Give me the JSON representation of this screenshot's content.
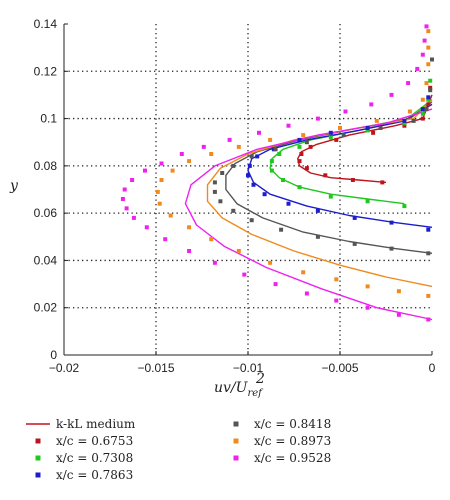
{
  "chart_data": {
    "type": "line",
    "xlabel": "uv/U",
    "xlabel_superscript": "2",
    "xlabel_subscript": "ref",
    "ylabel": "y",
    "xlim": [
      -0.02,
      0
    ],
    "ylim": [
      0,
      0.14
    ],
    "xticks": [
      -0.02,
      -0.015,
      -0.01,
      -0.005,
      0
    ],
    "xtick_labels": [
      "−0.02",
      "−0.015",
      "−0.01",
      "−0.005",
      "0"
    ],
    "yticks": [
      0,
      0.02,
      0.04,
      0.06,
      0.08,
      0.1,
      0.12,
      0.14
    ],
    "ytick_labels": [
      "0",
      "0.02",
      "0.04",
      "0.06",
      "0.08",
      "0.1",
      "0.12",
      "0.14"
    ],
    "grid": "dotted",
    "legend_position": "below",
    "line_legend": "k-kL medium",
    "series": [
      {
        "name": "x/c = 0.6753",
        "color": "#c0141c",
        "line": [
          [
            -0.0025,
            0.073
          ],
          [
            -0.004,
            0.074
          ],
          [
            -0.0055,
            0.075
          ],
          [
            -0.0066,
            0.077
          ],
          [
            -0.0072,
            0.08
          ],
          [
            -0.0073,
            0.083
          ],
          [
            -0.0071,
            0.086
          ],
          [
            -0.0063,
            0.089
          ],
          [
            -0.0045,
            0.093
          ],
          [
            -0.002,
            0.097
          ],
          [
            -0.0005,
            0.1
          ],
          [
            0,
            0.11
          ]
        ],
        "points": [
          [
            -0.0027,
            0.073
          ],
          [
            -0.0043,
            0.074
          ],
          [
            -0.0058,
            0.076
          ],
          [
            -0.0068,
            0.079
          ],
          [
            -0.0072,
            0.082
          ],
          [
            -0.0071,
            0.085
          ],
          [
            -0.0066,
            0.088
          ],
          [
            -0.0052,
            0.091
          ],
          [
            -0.0032,
            0.094
          ],
          [
            -0.0015,
            0.097
          ],
          [
            -0.0005,
            0.1
          ],
          [
            -0.0002,
            0.106
          ],
          [
            -0.0001,
            0.113
          ]
        ]
      },
      {
        "name": "x/c = 0.7308",
        "color": "#1ec81e",
        "line": [
          [
            -0.0015,
            0.064
          ],
          [
            -0.0035,
            0.066
          ],
          [
            -0.0055,
            0.068
          ],
          [
            -0.0072,
            0.071
          ],
          [
            -0.0083,
            0.075
          ],
          [
            -0.0088,
            0.079
          ],
          [
            -0.0087,
            0.083
          ],
          [
            -0.0081,
            0.087
          ],
          [
            -0.0066,
            0.091
          ],
          [
            -0.004,
            0.095
          ],
          [
            -0.0015,
            0.099
          ],
          [
            0,
            0.108
          ]
        ],
        "points": [
          [
            -0.0015,
            0.063
          ],
          [
            -0.0035,
            0.065
          ],
          [
            -0.0055,
            0.067
          ],
          [
            -0.0072,
            0.071
          ],
          [
            -0.0081,
            0.074
          ],
          [
            -0.0087,
            0.078
          ],
          [
            -0.0087,
            0.082
          ],
          [
            -0.0083,
            0.085
          ],
          [
            -0.0072,
            0.088
          ],
          [
            -0.0055,
            0.092
          ],
          [
            -0.0035,
            0.095
          ],
          [
            -0.0015,
            0.098
          ],
          [
            -0.0005,
            0.102
          ],
          [
            -0.0002,
            0.108
          ],
          [
            -0.0001,
            0.116
          ]
        ]
      },
      {
        "name": "x/c = 0.7863",
        "color": "#1d1dcc",
        "line": [
          [
            0,
            0.054
          ],
          [
            -0.002,
            0.056
          ],
          [
            -0.0045,
            0.059
          ],
          [
            -0.0068,
            0.063
          ],
          [
            -0.0088,
            0.068
          ],
          [
            -0.0097,
            0.073
          ],
          [
            -0.01,
            0.078
          ],
          [
            -0.0098,
            0.083
          ],
          [
            -0.0088,
            0.087
          ],
          [
            -0.0068,
            0.091
          ],
          [
            -0.004,
            0.095
          ],
          [
            -0.0015,
            0.099
          ],
          [
            0,
            0.106
          ]
        ],
        "points": [
          [
            -0.0002,
            0.053
          ],
          [
            -0.0022,
            0.056
          ],
          [
            -0.0042,
            0.058
          ],
          [
            -0.0062,
            0.061
          ],
          [
            -0.0078,
            0.064
          ],
          [
            -0.0091,
            0.068
          ],
          [
            -0.0097,
            0.072
          ],
          [
            -0.01,
            0.076
          ],
          [
            -0.0099,
            0.08
          ],
          [
            -0.0095,
            0.084
          ],
          [
            -0.0086,
            0.087
          ],
          [
            -0.0072,
            0.091
          ],
          [
            -0.0055,
            0.094
          ],
          [
            -0.0035,
            0.096
          ],
          [
            -0.0015,
            0.099
          ],
          [
            -0.0005,
            0.104
          ],
          [
            -0.0002,
            0.109
          ]
        ]
      },
      {
        "name": "x/c = 0.8418",
        "color": "#555555",
        "line": [
          [
            0,
            0.043
          ],
          [
            -0.002,
            0.045
          ],
          [
            -0.0045,
            0.048
          ],
          [
            -0.007,
            0.052
          ],
          [
            -0.0092,
            0.058
          ],
          [
            -0.0106,
            0.064
          ],
          [
            -0.0112,
            0.07
          ],
          [
            -0.0112,
            0.076
          ],
          [
            -0.0107,
            0.081
          ],
          [
            -0.0095,
            0.086
          ],
          [
            -0.0072,
            0.091
          ],
          [
            -0.004,
            0.096
          ],
          [
            -0.0012,
            0.1
          ],
          [
            0,
            0.107
          ]
        ],
        "points": [
          [
            -0.0002,
            0.043
          ],
          [
            -0.0022,
            0.045
          ],
          [
            -0.0042,
            0.047
          ],
          [
            -0.0062,
            0.05
          ],
          [
            -0.0082,
            0.053
          ],
          [
            -0.0098,
            0.057
          ],
          [
            -0.0108,
            0.061
          ],
          [
            -0.0115,
            0.065
          ],
          [
            -0.0118,
            0.069
          ],
          [
            -0.0118,
            0.073
          ],
          [
            -0.0114,
            0.077
          ],
          [
            -0.0108,
            0.08
          ],
          [
            -0.0098,
            0.084
          ],
          [
            -0.0085,
            0.087
          ],
          [
            -0.0068,
            0.09
          ],
          [
            -0.0048,
            0.093
          ],
          [
            -0.0028,
            0.096
          ],
          [
            -0.001,
            0.099
          ],
          [
            -0.0003,
            0.104
          ],
          [
            -0.0001,
            0.112
          ],
          [
            0,
            0.125
          ]
        ]
      },
      {
        "name": "x/c = 0.8973",
        "color": "#f08a1e",
        "line": [
          [
            0,
            0.029
          ],
          [
            -0.0025,
            0.033
          ],
          [
            -0.005,
            0.038
          ],
          [
            -0.0075,
            0.044
          ],
          [
            -0.0098,
            0.051
          ],
          [
            -0.0114,
            0.058
          ],
          [
            -0.0122,
            0.065
          ],
          [
            -0.0122,
            0.072
          ],
          [
            -0.0115,
            0.079
          ],
          [
            -0.01,
            0.085
          ],
          [
            -0.0075,
            0.091
          ],
          [
            -0.004,
            0.096
          ],
          [
            -0.001,
            0.1
          ],
          [
            0,
            0.108
          ]
        ],
        "points": [
          [
            -0.0002,
            0.025
          ],
          [
            -0.0018,
            0.027
          ],
          [
            -0.0035,
            0.029
          ],
          [
            -0.0052,
            0.032
          ],
          [
            -0.007,
            0.035
          ],
          [
            -0.0088,
            0.039
          ],
          [
            -0.0105,
            0.044
          ],
          [
            -0.012,
            0.049
          ],
          [
            -0.0132,
            0.054
          ],
          [
            -0.0142,
            0.059
          ],
          [
            -0.0148,
            0.064
          ],
          [
            -0.0149,
            0.069
          ],
          [
            -0.0147,
            0.074
          ],
          [
            -0.0141,
            0.078
          ],
          [
            -0.0132,
            0.082
          ],
          [
            -0.012,
            0.085
          ],
          [
            -0.0105,
            0.088
          ],
          [
            -0.0088,
            0.091
          ],
          [
            -0.007,
            0.093
          ],
          [
            -0.005,
            0.096
          ],
          [
            -0.003,
            0.099
          ],
          [
            -0.0012,
            0.103
          ],
          [
            -0.0005,
            0.108
          ],
          [
            -0.0003,
            0.115
          ],
          [
            -0.0002,
            0.123
          ],
          [
            -0.0002,
            0.13
          ],
          [
            -0.0002,
            0.137
          ]
        ]
      },
      {
        "name": "x/c = 0.9528",
        "color": "#ee22ee",
        "line": [
          [
            0,
            0.015
          ],
          [
            -0.003,
            0.02
          ],
          [
            -0.006,
            0.028
          ],
          [
            -0.009,
            0.037
          ],
          [
            -0.0113,
            0.046
          ],
          [
            -0.0128,
            0.055
          ],
          [
            -0.0134,
            0.064
          ],
          [
            -0.0131,
            0.072
          ],
          [
            -0.0118,
            0.08
          ],
          [
            -0.0095,
            0.087
          ],
          [
            -0.0062,
            0.093
          ],
          [
            -0.0025,
            0.098
          ],
          [
            0,
            0.104
          ]
        ],
        "points": [
          [
            -0.0002,
            0.015
          ],
          [
            -0.0018,
            0.017
          ],
          [
            -0.0035,
            0.02
          ],
          [
            -0.0052,
            0.023
          ],
          [
            -0.0068,
            0.026
          ],
          [
            -0.0085,
            0.03
          ],
          [
            -0.0102,
            0.034
          ],
          [
            -0.0118,
            0.039
          ],
          [
            -0.0132,
            0.044
          ],
          [
            -0.0145,
            0.049
          ],
          [
            -0.0155,
            0.054
          ],
          [
            -0.0162,
            0.058
          ],
          [
            -0.0166,
            0.062
          ],
          [
            -0.0168,
            0.066
          ],
          [
            -0.0167,
            0.07
          ],
          [
            -0.0163,
            0.074
          ],
          [
            -0.0156,
            0.078
          ],
          [
            -0.0147,
            0.081
          ],
          [
            -0.0136,
            0.085
          ],
          [
            -0.0124,
            0.088
          ],
          [
            -0.011,
            0.091
          ],
          [
            -0.0094,
            0.094
          ],
          [
            -0.0078,
            0.097
          ],
          [
            -0.0062,
            0.1
          ],
          [
            -0.0047,
            0.103
          ],
          [
            -0.0033,
            0.106
          ],
          [
            -0.0022,
            0.11
          ],
          [
            -0.0013,
            0.115
          ],
          [
            -0.0008,
            0.121
          ],
          [
            -0.0005,
            0.127
          ],
          [
            -0.0004,
            0.133
          ],
          [
            -0.0003,
            0.139
          ]
        ]
      }
    ]
  }
}
